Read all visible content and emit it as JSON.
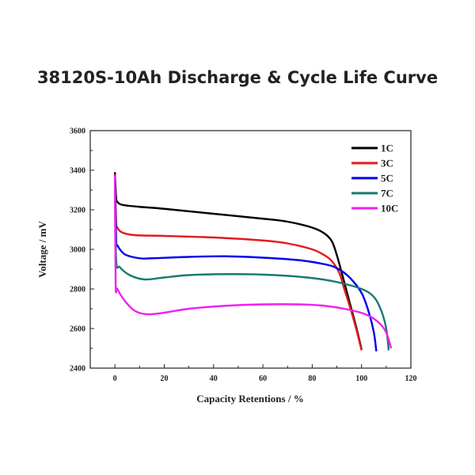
{
  "chart_data": {
    "type": "line",
    "title": "38120S-10Ah Discharge & Cycle Life Curve",
    "xlabel": "Capacity Retentions / %",
    "ylabel": "Voltage / mV",
    "xlim": [
      -10,
      120
    ],
    "ylim": [
      2400,
      3600
    ],
    "xticks": [
      0,
      20,
      40,
      60,
      80,
      100,
      120
    ],
    "yticks": [
      2400,
      2600,
      2800,
      3000,
      3200,
      3400,
      3600
    ],
    "grid": false,
    "legend_position": "top-right",
    "series": [
      {
        "name": "1C",
        "color": "#000000",
        "points": [
          [
            0,
            3390
          ],
          [
            0.5,
            3260
          ],
          [
            1,
            3240
          ],
          [
            3,
            3225
          ],
          [
            10,
            3215
          ],
          [
            20,
            3205
          ],
          [
            40,
            3180
          ],
          [
            60,
            3155
          ],
          [
            70,
            3140
          ],
          [
            80,
            3110
          ],
          [
            85,
            3080
          ],
          [
            88,
            3040
          ],
          [
            90,
            2970
          ],
          [
            92,
            2880
          ],
          [
            95,
            2740
          ],
          [
            98,
            2600
          ],
          [
            100,
            2495
          ]
        ]
      },
      {
        "name": "3C",
        "color": "#e41a1c",
        "points": [
          [
            0,
            3380
          ],
          [
            0.5,
            3140
          ],
          [
            1,
            3110
          ],
          [
            3,
            3085
          ],
          [
            8,
            3072
          ],
          [
            20,
            3068
          ],
          [
            40,
            3060
          ],
          [
            60,
            3045
          ],
          [
            70,
            3030
          ],
          [
            80,
            3000
          ],
          [
            85,
            2970
          ],
          [
            88,
            2940
          ],
          [
            91,
            2880
          ],
          [
            93,
            2800
          ],
          [
            96,
            2680
          ],
          [
            98,
            2590
          ],
          [
            100,
            2490
          ]
        ]
      },
      {
        "name": "5C",
        "color": "#0000ee",
        "points": [
          [
            0,
            3370
          ],
          [
            0.5,
            3050
          ],
          [
            1,
            3020
          ],
          [
            4,
            2975
          ],
          [
            10,
            2955
          ],
          [
            15,
            2955
          ],
          [
            30,
            2962
          ],
          [
            45,
            2965
          ],
          [
            60,
            2958
          ],
          [
            75,
            2945
          ],
          [
            85,
            2925
          ],
          [
            90,
            2905
          ],
          [
            95,
            2860
          ],
          [
            100,
            2780
          ],
          [
            103,
            2680
          ],
          [
            105,
            2580
          ],
          [
            106,
            2485
          ]
        ]
      },
      {
        "name": "7C",
        "color": "#167a6e",
        "points": [
          [
            0,
            3360
          ],
          [
            0.5,
            2950
          ],
          [
            2,
            2910
          ],
          [
            6,
            2870
          ],
          [
            12,
            2848
          ],
          [
            20,
            2858
          ],
          [
            30,
            2870
          ],
          [
            48,
            2875
          ],
          [
            65,
            2870
          ],
          [
            80,
            2855
          ],
          [
            90,
            2835
          ],
          [
            100,
            2800
          ],
          [
            105,
            2760
          ],
          [
            108,
            2690
          ],
          [
            110,
            2600
          ],
          [
            111,
            2490
          ]
        ]
      },
      {
        "name": "10C",
        "color": "#f020f0",
        "points": [
          [
            0,
            3370
          ],
          [
            0.3,
            2830
          ],
          [
            1,
            2800
          ],
          [
            4,
            2740
          ],
          [
            8,
            2690
          ],
          [
            13,
            2672
          ],
          [
            20,
            2680
          ],
          [
            30,
            2700
          ],
          [
            45,
            2715
          ],
          [
            60,
            2722
          ],
          [
            75,
            2722
          ],
          [
            85,
            2715
          ],
          [
            95,
            2695
          ],
          [
            102,
            2670
          ],
          [
            107,
            2630
          ],
          [
            110,
            2580
          ],
          [
            112,
            2500
          ]
        ]
      }
    ]
  }
}
